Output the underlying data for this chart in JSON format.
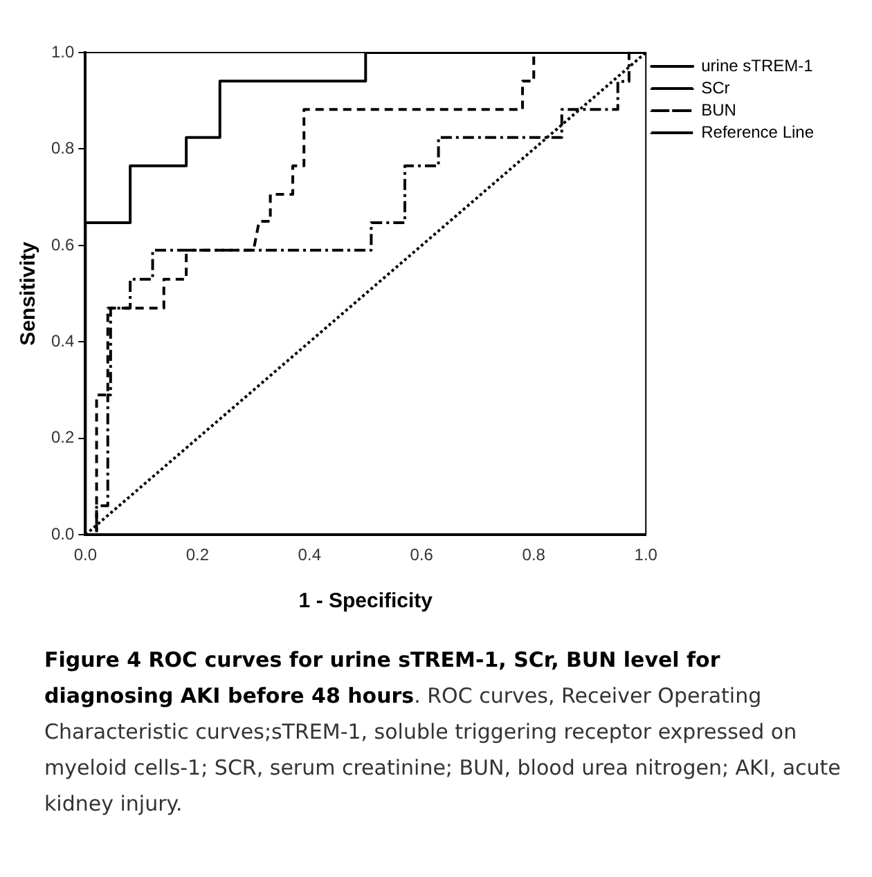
{
  "chart_data": {
    "type": "line",
    "title": "Figure 4 ROC curves for urine sTREM-1, SCr, BUN level for diagnosing AKI before 48 hours",
    "annotations": [
      ". ROC curves, Receiver Operating Characteristic curves;sTREM-1, soluble triggering receptor expressed on myeloid cells-1; SCR, serum creatinine; BUN, blood urea nitrogen; AKI, acute kidney injury."
    ],
    "xlabel": "1 - Specificity",
    "ylabel": "Sensitivity",
    "xlim": [
      0,
      1
    ],
    "ylim": [
      0,
      1
    ],
    "xticks": [
      {
        "value": 0,
        "label": "0.0"
      },
      {
        "value": 0.2,
        "label": "0.2"
      },
      {
        "value": 0.4,
        "label": "0.4"
      },
      {
        "value": 0.6,
        "label": "0.6"
      },
      {
        "value": 0.8,
        "label": "0.8"
      },
      {
        "value": 1,
        "label": "1.0"
      }
    ],
    "yticks": [
      {
        "value": 0,
        "label": "0.0"
      },
      {
        "value": 0.2,
        "label": "0.2"
      },
      {
        "value": 0.4,
        "label": "0.4"
      },
      {
        "value": 0.6,
        "label": "0.6"
      },
      {
        "value": 0.8,
        "label": "0.8"
      },
      {
        "value": 1,
        "label": "1.0"
      }
    ],
    "grid": false,
    "legend": "top right",
    "marker": "none",
    "series": [
      {
        "name": "urine sTREM-1",
        "color": "#000000",
        "line_style": "solid",
        "x": [
          0,
          0,
          0.08,
          0.08,
          0.18,
          0.18,
          0.24,
          0.24,
          0.5,
          0.5,
          1
        ],
        "values": [
          0,
          0.647,
          0.647,
          0.765,
          0.765,
          0.824,
          0.824,
          0.941,
          0.941,
          1,
          1
        ]
      },
      {
        "name": "SCr",
        "color": "#000000",
        "line_style": "dashed",
        "x": [
          0,
          0.02,
          0.02,
          0.04,
          0.04,
          0.14,
          0.14,
          0.18,
          0.18,
          0.3,
          0.31,
          0.33,
          0.33,
          0.37,
          0.37,
          0.39,
          0.39,
          0.78,
          0.78,
          0.8,
          0.8,
          1
        ],
        "values": [
          0,
          0,
          0.29,
          0.29,
          0.47,
          0.47,
          0.53,
          0.53,
          0.59,
          0.59,
          0.65,
          0.65,
          0.706,
          0.706,
          0.765,
          0.765,
          0.882,
          0.882,
          0.941,
          0.941,
          1,
          1
        ]
      },
      {
        "name": "BUN",
        "color": "#000000",
        "line_style": "dashdot",
        "x": [
          0,
          0.02,
          0.02,
          0.04,
          0.04,
          0.045,
          0.045,
          0.08,
          0.08,
          0.12,
          0.12,
          0.51,
          0.51,
          0.57,
          0.57,
          0.63,
          0.63,
          0.85,
          0.85,
          0.95,
          0.95,
          0.97,
          0.97,
          1
        ],
        "values": [
          0,
          0,
          0.06,
          0.06,
          0.29,
          0.29,
          0.47,
          0.47,
          0.53,
          0.53,
          0.59,
          0.59,
          0.647,
          0.647,
          0.765,
          0.765,
          0.824,
          0.824,
          0.882,
          0.882,
          0.94,
          0.94,
          1,
          1
        ]
      },
      {
        "name": "Reference Line",
        "color": "#000000",
        "line_style": "dotted",
        "x": [
          0,
          1
        ],
        "values": [
          0,
          1
        ]
      }
    ]
  }
}
